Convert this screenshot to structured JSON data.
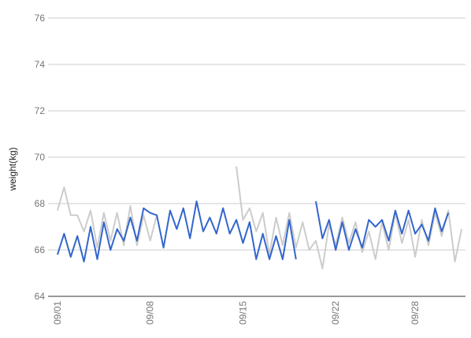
{
  "chart_data": {
    "type": "line",
    "ylabel": "weight(kg)",
    "xlabel": "",
    "title": "",
    "ylim": [
      64,
      76
    ],
    "yticks": [
      64,
      66,
      68,
      70,
      72,
      74,
      76
    ],
    "xlim": [
      0,
      61
    ],
    "xticks": [
      {
        "x": 0,
        "label": "09/01"
      },
      {
        "x": 14,
        "label": "09/08"
      },
      {
        "x": 28,
        "label": "09/15"
      },
      {
        "x": 42,
        "label": "09/22"
      },
      {
        "x": 54,
        "label": "09/28"
      }
    ],
    "grid": true,
    "legend": "none",
    "colors": {
      "series_blue": "#3366cc",
      "series_gray": "#cccccc",
      "grid": "#cccccc",
      "text": "#757575",
      "label": "#222222"
    },
    "series": [
      {
        "color": "#3366cc",
        "points": [
          [
            0,
            65.8
          ],
          [
            1,
            66.7
          ],
          [
            2,
            65.7
          ],
          [
            3,
            66.6
          ],
          [
            4,
            65.5
          ],
          [
            5,
            67.0
          ],
          [
            6,
            65.6
          ],
          [
            7,
            67.2
          ],
          [
            8,
            66.0
          ],
          [
            9,
            66.9
          ],
          [
            10,
            66.4
          ],
          [
            11,
            67.4
          ],
          [
            12,
            66.4
          ],
          [
            13,
            67.8
          ],
          [
            14,
            67.6
          ],
          [
            15,
            67.5
          ],
          [
            16,
            66.1
          ],
          [
            17,
            67.7
          ],
          [
            18,
            66.9
          ],
          [
            19,
            67.8
          ],
          [
            20,
            66.5
          ],
          [
            21,
            68.1
          ],
          [
            22,
            66.8
          ],
          [
            23,
            67.4
          ],
          [
            24,
            66.7
          ],
          [
            25,
            67.8
          ],
          [
            26,
            66.7
          ],
          [
            27,
            67.3
          ],
          [
            28,
            66.3
          ],
          [
            29,
            67.2
          ],
          [
            30,
            65.6
          ],
          [
            31,
            66.7
          ],
          [
            32,
            65.6
          ],
          [
            33,
            66.6
          ],
          [
            34,
            65.6
          ],
          [
            35,
            67.3
          ],
          [
            36,
            65.6
          ],
          null,
          [
            39,
            68.1
          ],
          [
            40,
            66.5
          ],
          [
            41,
            67.3
          ],
          [
            42,
            66.0
          ],
          [
            43,
            67.2
          ],
          [
            44,
            66.0
          ],
          [
            45,
            66.9
          ],
          [
            46,
            66.1
          ],
          [
            47,
            67.3
          ],
          [
            48,
            67.0
          ],
          [
            49,
            67.3
          ],
          [
            50,
            66.4
          ],
          [
            51,
            67.7
          ],
          [
            52,
            66.7
          ],
          [
            53,
            67.7
          ],
          [
            54,
            66.7
          ],
          [
            55,
            67.1
          ],
          [
            56,
            66.4
          ],
          [
            57,
            67.8
          ],
          [
            58,
            66.8
          ],
          [
            59,
            67.6
          ]
        ]
      },
      {
        "color": "#cccccc",
        "points": [
          [
            0,
            67.7
          ],
          [
            1,
            68.7
          ],
          [
            2,
            67.5
          ],
          [
            3,
            67.5
          ],
          [
            4,
            66.8
          ],
          [
            5,
            67.7
          ],
          [
            6,
            66.1
          ],
          [
            7,
            67.6
          ],
          [
            8,
            66.4
          ],
          [
            9,
            67.6
          ],
          [
            10,
            66.2
          ],
          [
            11,
            67.9
          ],
          [
            12,
            66.2
          ],
          [
            13,
            67.5
          ],
          [
            14,
            66.4
          ],
          [
            15,
            67.5
          ],
          null,
          [
            27,
            69.6
          ],
          [
            28,
            67.3
          ],
          [
            29,
            67.8
          ],
          [
            30,
            66.8
          ],
          [
            31,
            67.6
          ],
          [
            32,
            65.8
          ],
          [
            33,
            67.4
          ],
          [
            34,
            66.2
          ],
          [
            35,
            67.6
          ],
          [
            36,
            66.1
          ],
          [
            37,
            67.2
          ],
          [
            38,
            66.0
          ],
          [
            39,
            66.4
          ],
          [
            40,
            65.2
          ],
          [
            41,
            67.1
          ],
          [
            42,
            66.2
          ],
          [
            43,
            67.4
          ],
          [
            44,
            66.3
          ],
          [
            45,
            67.2
          ],
          [
            46,
            65.9
          ],
          [
            47,
            66.8
          ],
          [
            48,
            65.6
          ],
          [
            49,
            67.2
          ],
          [
            50,
            66.0
          ],
          [
            51,
            67.6
          ],
          [
            52,
            66.3
          ],
          [
            53,
            67.3
          ],
          [
            54,
            65.7
          ],
          [
            55,
            67.3
          ],
          [
            56,
            66.2
          ],
          [
            57,
            67.6
          ],
          [
            58,
            66.6
          ],
          [
            59,
            67.7
          ],
          [
            60,
            65.5
          ],
          [
            61,
            66.9
          ]
        ]
      }
    ]
  }
}
